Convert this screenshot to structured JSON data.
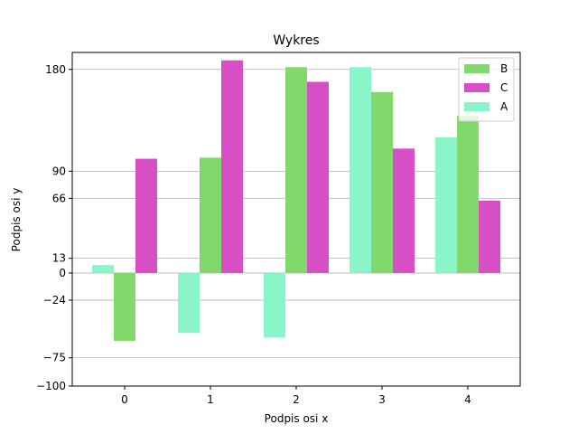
{
  "chart_data": {
    "type": "bar",
    "title": "Wykres",
    "xlabel": "Podpis osi x",
    "ylabel": "Podpis osi y",
    "categories": [
      "0",
      "1",
      "2",
      "3",
      "4"
    ],
    "ylim": [
      -100,
      195
    ],
    "yticks": [
      -100,
      -75,
      -24,
      0,
      13,
      66,
      90,
      180
    ],
    "grid": "y",
    "legend_position": "top-right",
    "series": [
      {
        "name": "A",
        "color": "#8af5c8",
        "values": [
          7,
          -53,
          -57,
          182,
          120
        ]
      },
      {
        "name": "B",
        "color": "#82d96b",
        "values": [
          -60,
          102,
          182,
          160,
          139
        ]
      },
      {
        "name": "C",
        "color": "#d84ec5",
        "values": [
          101,
          188,
          169,
          110,
          64
        ]
      }
    ],
    "legend_order": [
      "B",
      "C",
      "A"
    ]
  }
}
